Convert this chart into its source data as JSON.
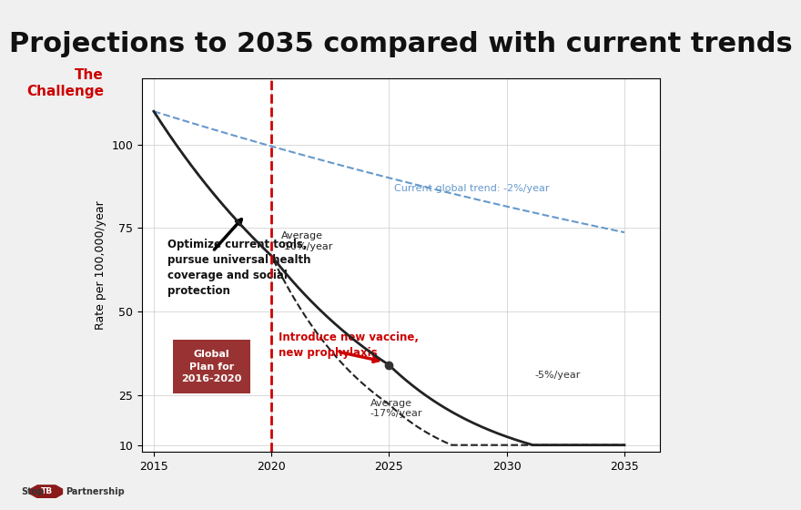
{
  "title": "Projections to 2035 compared with current trends",
  "title_fontsize": 22,
  "sidebar_title": "The\nChallenge",
  "sidebar_color": "#cc0000",
  "ylabel": "Rate per 100,000/year",
  "xlim": [
    2014.5,
    2036.5
  ],
  "ylim": [
    8,
    120
  ],
  "xticks": [
    2015,
    2020,
    2025,
    2030,
    2035
  ],
  "yticks": [
    10,
    25,
    50,
    75,
    100
  ],
  "plot_bg_color": "#ffffff",
  "solid_line_color": "#222222",
  "vline_color": "#cc0000",
  "vline_x": 2020,
  "current_trend_label": "Current global trend: -2%/year",
  "current_trend_color": "#6699cc",
  "avg_10_label": "Average\n-10%/year",
  "avg_17_label": "Average\n-17%/year",
  "minus5_label": "-5%/year",
  "optimize_text": "Optimize current tools,\npursue universal health\ncoverage and social\nprotection",
  "new_vaccine_text": "Introduce new vaccine,\nnew prophylaxis",
  "new_vaccine_color": "#cc0000",
  "global_plan_text": "Global\nPlan for\n2016-2020",
  "global_plan_bg": "#993333",
  "global_plan_text_color": "#ffffff"
}
